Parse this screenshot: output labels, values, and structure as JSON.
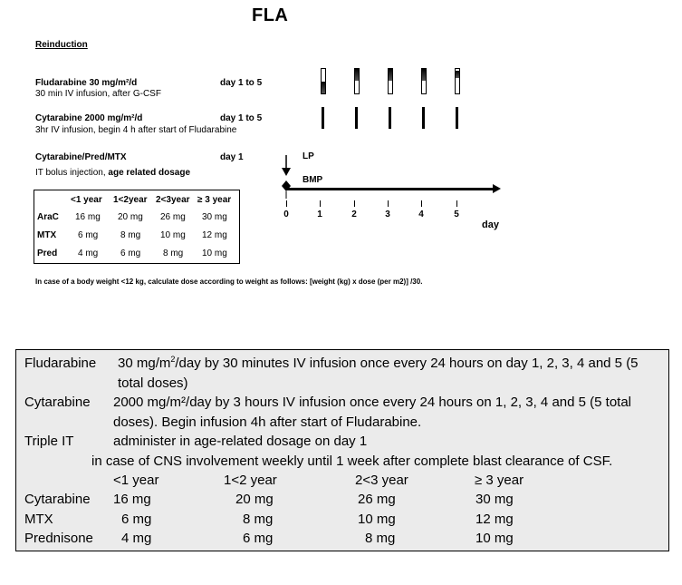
{
  "page_title": "FLA",
  "section_heading": "Reinduction",
  "drugs": [
    {
      "name": "Fludarabine 30 mg/m²/d",
      "days": "day 1 to 5",
      "desc": "30 min IV infusion, after G-CSF"
    },
    {
      "name": "Cytarabine  2000 mg/m²/d",
      "days": "day 1 to 5",
      "desc": "3hr IV infusion, begin 4 h after start of Fludarabine"
    },
    {
      "name": "Cytarabine/Pred/MTX",
      "days": "day 1",
      "desc_plain": "IT bolus injection, ",
      "desc_bold": "age related dosage"
    }
  ],
  "timeline": {
    "lp_label": "LP",
    "bmp_label": "BMP",
    "ticks": [
      "0",
      "1",
      "2",
      "3",
      "4",
      "5"
    ],
    "axis_label": "day"
  },
  "dose_table": {
    "headers": [
      "<1 year",
      "1<2year",
      "2<3year",
      "≥ 3 year"
    ],
    "rows": [
      {
        "label": "AraC",
        "values": [
          "16 mg",
          "20 mg",
          "26 mg",
          "30 mg"
        ]
      },
      {
        "label": "MTX",
        "values": [
          "6 mg",
          "8 mg",
          "10 mg",
          "12 mg"
        ]
      },
      {
        "label": "Pred",
        "values": [
          "4 mg",
          "6 mg",
          "8 mg",
          "10 mg"
        ]
      }
    ]
  },
  "footnote": "In case of a body weight <12 kg, calculate dose according to weight as follows: [weight (kg) x dose (per m2)] /30.",
  "summary": {
    "fludarabine_label": "Fludarabine",
    "fludarabine_line1_pre": "30 mg/m",
    "fludarabine_line1_sup": "2",
    "fludarabine_line1_post": "/day by 30 minutes IV infusion once every 24 hours on day 1, 2, 3, 4 and 5 (5",
    "fludarabine_line2": "total doses)",
    "cytarabine_label": "Cytarabine",
    "cytarabine_line1": "2000 mg/m²/day by 3 hours IV infusion once every 24 hours on 1, 2, 3, 4 and 5 (5 total",
    "cytarabine_line2": "doses). Begin infusion 4h after start of Fludarabine.",
    "tripleit_label": "Triple IT",
    "tripleit_line1": "administer in age-related dosage on day 1",
    "tripleit_line2": "in case of CNS involvement weekly until 1 week after complete blast clearance of CSF.",
    "headers": [
      "<1 year",
      "1<2 year",
      "2<3 year",
      "≥ 3 year"
    ],
    "rows": [
      {
        "label": "Cytarabine",
        "values": [
          "16 mg",
          "20 mg",
          "26 mg",
          "30 mg"
        ]
      },
      {
        "label": "MTX",
        "values": [
          "6 mg",
          "8 mg",
          "10 mg",
          "12 mg"
        ]
      },
      {
        "label": "Prednisone",
        "values": [
          "4 mg",
          "6 mg",
          "8 mg",
          "10 mg"
        ]
      }
    ]
  }
}
